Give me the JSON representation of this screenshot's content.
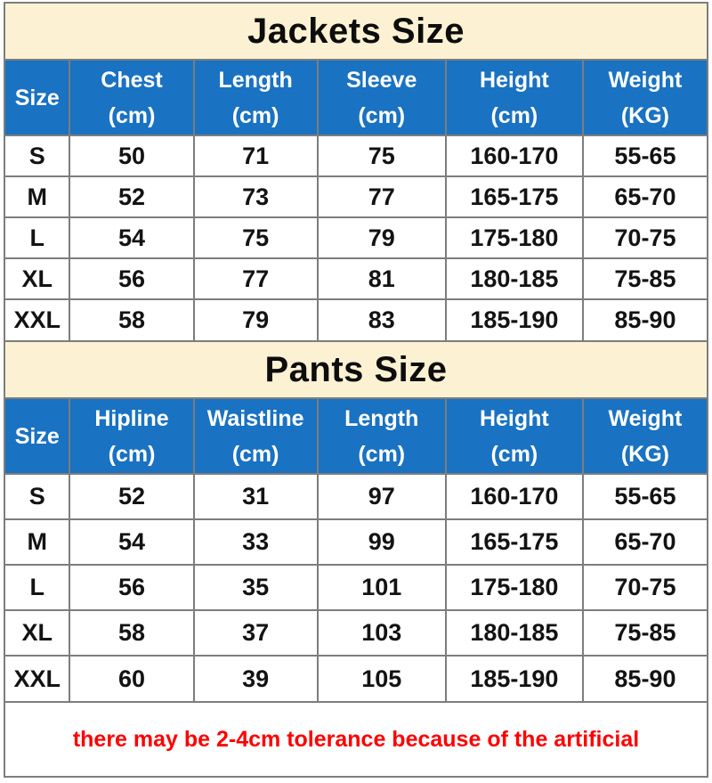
{
  "jackets_table": {
    "title": "Jackets Size",
    "columns": [
      {
        "label": "Size",
        "unit": ""
      },
      {
        "label": "Chest",
        "unit": "(cm)"
      },
      {
        "label": "Length",
        "unit": "(cm)"
      },
      {
        "label": "Sleeve",
        "unit": "(cm)"
      },
      {
        "label": "Height",
        "unit": "(cm)"
      },
      {
        "label": "Weight",
        "unit": "(KG)"
      }
    ],
    "rows": [
      [
        "S",
        "50",
        "71",
        "75",
        "160-170",
        "55-65"
      ],
      [
        "M",
        "52",
        "73",
        "77",
        "165-175",
        "65-70"
      ],
      [
        "L",
        "54",
        "75",
        "79",
        "175-180",
        "70-75"
      ],
      [
        "XL",
        "56",
        "77",
        "81",
        "180-185",
        "75-85"
      ],
      [
        "XXL",
        "58",
        "79",
        "83",
        "185-190",
        "85-90"
      ]
    ]
  },
  "pants_table": {
    "title": "Pants Size",
    "columns": [
      {
        "label": "Size",
        "unit": ""
      },
      {
        "label": "Hipline",
        "unit": "(cm)"
      },
      {
        "label": "Waistline",
        "unit": "(cm)"
      },
      {
        "label": "Length",
        "unit": "(cm)"
      },
      {
        "label": "Height",
        "unit": "(cm)"
      },
      {
        "label": "Weight",
        "unit": "(KG)"
      }
    ],
    "rows": [
      [
        "S",
        "52",
        "31",
        "97",
        "160-170",
        "55-65"
      ],
      [
        "M",
        "54",
        "33",
        "99",
        "165-175",
        "65-70"
      ],
      [
        "L",
        "56",
        "35",
        "101",
        "175-180",
        "70-75"
      ],
      [
        "XL",
        "58",
        "37",
        "103",
        "180-185",
        "75-85"
      ],
      [
        "XXL",
        "60",
        "39",
        "105",
        "185-190",
        "85-90"
      ]
    ]
  },
  "note": {
    "text": "there may be 2-4cm tolerance because of the artificial"
  },
  "colors": {
    "banner_bg": "#fcf2d3",
    "header_bg": "#1a72c2",
    "header_text": "#ffffff",
    "row_bg": "#ffffff",
    "border": "#7d7d7d",
    "title_text": "#0d0d0d",
    "note_text": "#fe0000"
  }
}
